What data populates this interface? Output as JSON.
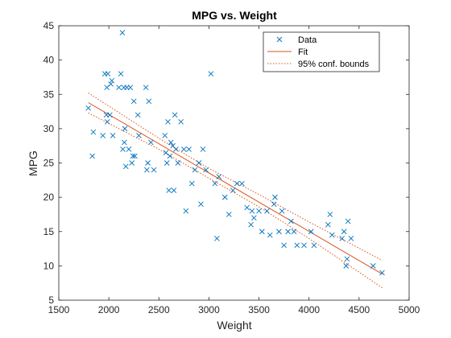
{
  "chart_data": {
    "type": "scatter",
    "title": "MPG vs. Weight",
    "xlabel": "Weight",
    "ylabel": "MPG",
    "xlim": [
      1500,
      5000
    ],
    "ylim": [
      5,
      45
    ],
    "xticks": [
      1500,
      2000,
      2500,
      3000,
      3500,
      4000,
      4500,
      5000
    ],
    "yticks": [
      5,
      10,
      15,
      20,
      25,
      30,
      35,
      40,
      45
    ],
    "xtick_labels": [
      "1500",
      "2000",
      "2500",
      "3000",
      "3500",
      "4000",
      "4500",
      "5000"
    ],
    "ytick_labels": [
      "5",
      "10",
      "15",
      "20",
      "25",
      "30",
      "35",
      "40",
      "45"
    ],
    "grid": false,
    "legend_position": "top-right",
    "legend": {
      "data_label": "Data",
      "fit_label": "Fit",
      "bounds_label": "95% conf. bounds"
    },
    "colors": {
      "data": "#0072BD",
      "fit": "#D95319",
      "bounds": "#D95319",
      "axes": "#262626"
    },
    "series": [
      {
        "kind": "data",
        "marker": "x",
        "points": [
          [
            1795,
            33
          ],
          [
            1835,
            26
          ],
          [
            1845,
            29.5
          ],
          [
            1940,
            29
          ],
          [
            1960,
            38
          ],
          [
            1975,
            32
          ],
          [
            1980,
            36
          ],
          [
            1985,
            31
          ],
          [
            1990,
            38
          ],
          [
            2010,
            32
          ],
          [
            2020,
            36.5
          ],
          [
            2030,
            37
          ],
          [
            2040,
            29
          ],
          [
            2100,
            36
          ],
          [
            2120,
            38
          ],
          [
            2135,
            44
          ],
          [
            2140,
            27
          ],
          [
            2150,
            36
          ],
          [
            2155,
            28
          ],
          [
            2160,
            30
          ],
          [
            2170,
            24.5
          ],
          [
            2180,
            36
          ],
          [
            2200,
            27
          ],
          [
            2215,
            36
          ],
          [
            2230,
            25
          ],
          [
            2240,
            26
          ],
          [
            2250,
            34
          ],
          [
            2260,
            26
          ],
          [
            2290,
            32
          ],
          [
            2300,
            29
          ],
          [
            2370,
            36
          ],
          [
            2380,
            24
          ],
          [
            2390,
            25
          ],
          [
            2400,
            34
          ],
          [
            2420,
            28
          ],
          [
            2450,
            24
          ],
          [
            2560,
            29
          ],
          [
            2570,
            26.5
          ],
          [
            2580,
            25
          ],
          [
            2590,
            31
          ],
          [
            2600,
            21
          ],
          [
            2610,
            26
          ],
          [
            2620,
            28
          ],
          [
            2640,
            27.5
          ],
          [
            2650,
            21
          ],
          [
            2660,
            32
          ],
          [
            2670,
            27
          ],
          [
            2690,
            25
          ],
          [
            2720,
            31
          ],
          [
            2750,
            27
          ],
          [
            2770,
            18
          ],
          [
            2800,
            27
          ],
          [
            2830,
            22
          ],
          [
            2860,
            24
          ],
          [
            2900,
            25
          ],
          [
            2920,
            19
          ],
          [
            2940,
            27
          ],
          [
            2970,
            24
          ],
          [
            3020,
            38
          ],
          [
            3060,
            22
          ],
          [
            3080,
            14
          ],
          [
            3100,
            23
          ],
          [
            3160,
            20
          ],
          [
            3200,
            17.5
          ],
          [
            3240,
            21
          ],
          [
            3280,
            22
          ],
          [
            3330,
            22
          ],
          [
            3380,
            18.5
          ],
          [
            3420,
            16
          ],
          [
            3430,
            18
          ],
          [
            3450,
            17
          ],
          [
            3500,
            18
          ],
          [
            3530,
            15
          ],
          [
            3580,
            18
          ],
          [
            3610,
            14.5
          ],
          [
            3650,
            19
          ],
          [
            3660,
            20
          ],
          [
            3700,
            15
          ],
          [
            3730,
            18
          ],
          [
            3750,
            13
          ],
          [
            3790,
            15
          ],
          [
            3820,
            16.5
          ],
          [
            3850,
            15
          ],
          [
            3880,
            13
          ],
          [
            3950,
            13
          ],
          [
            4020,
            15
          ],
          [
            4050,
            13
          ],
          [
            4190,
            16
          ],
          [
            4210,
            17.5
          ],
          [
            4230,
            14.5
          ],
          [
            4330,
            14
          ],
          [
            4350,
            15
          ],
          [
            4370,
            10
          ],
          [
            4380,
            11
          ],
          [
            4390,
            16.5
          ],
          [
            4420,
            14
          ],
          [
            4640,
            10
          ],
          [
            4730,
            9
          ]
        ]
      },
      {
        "kind": "fit",
        "line": [
          [
            1795,
            33.8
          ],
          [
            4732,
            8.8
          ]
        ]
      },
      {
        "kind": "bounds",
        "upper": [
          [
            1795,
            35.2
          ],
          [
            2500,
            28.6
          ],
          [
            3000,
            24.2
          ],
          [
            3500,
            20.4
          ],
          [
            4000,
            16.4
          ],
          [
            4732,
            10.8
          ]
        ],
        "lower": [
          [
            1795,
            32.3
          ],
          [
            2500,
            27.0
          ],
          [
            3000,
            22.8
          ],
          [
            3500,
            18.6
          ],
          [
            4000,
            14.0
          ],
          [
            4732,
            6.8
          ]
        ]
      }
    ]
  }
}
